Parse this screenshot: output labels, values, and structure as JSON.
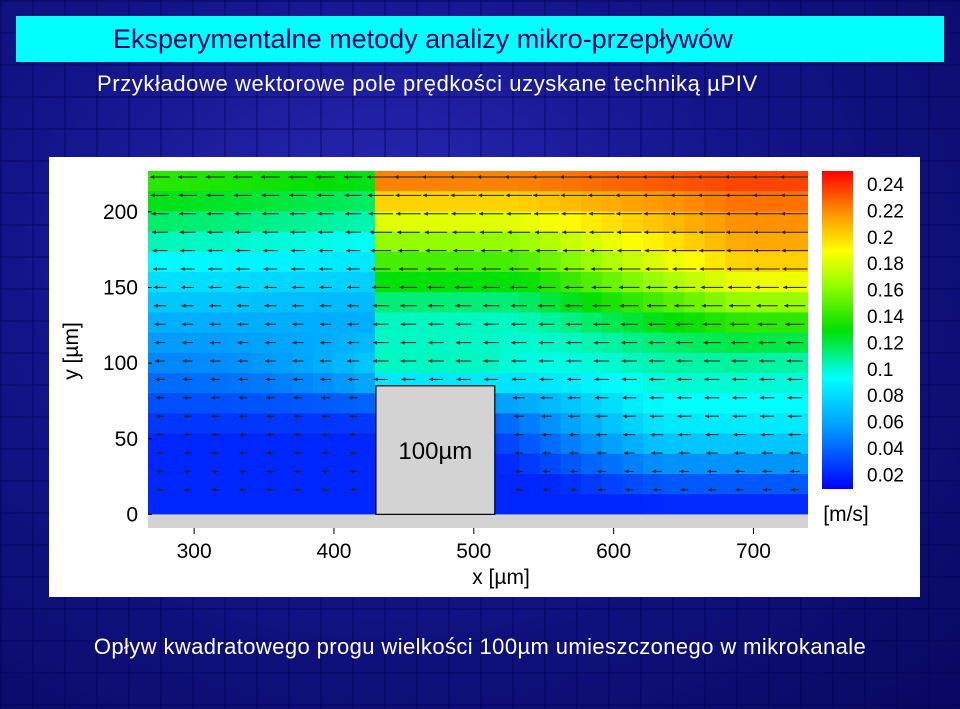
{
  "title": "Eksperymentalne metody analizy mikro-przepływów",
  "subtitle": "Przykładowe wektorowe pole prędkości uzyskane techniką µPIV",
  "caption": "Opływ kwadratowego progu wielkości 100µm umieszczonego w mikrokanale",
  "chart_data": {
    "type": "heatmap",
    "title": "",
    "xlabel": "x [µm]",
    "ylabel": "y [µm]",
    "xlim": [
      267,
      739
    ],
    "ylim": [
      -9,
      227
    ],
    "x_ticks": [
      "300",
      "400",
      "500",
      "600",
      "700"
    ],
    "y_ticks": [
      "0",
      "50",
      "100",
      "150",
      "200"
    ],
    "obstacle": {
      "label": "100µm",
      "x_range": [
        430,
        515
      ],
      "y_range": [
        0,
        85
      ]
    },
    "colorbar": {
      "unit": "[m/s]",
      "ticks": [
        "0.24",
        "0.22",
        "0.2",
        "0.18",
        "0.16",
        "0.14",
        "0.12",
        "0.1",
        "0.08",
        "0.06",
        "0.04",
        "0.02"
      ],
      "range": [
        0.0,
        0.25
      ]
    },
    "vector_direction": "-x"
  }
}
